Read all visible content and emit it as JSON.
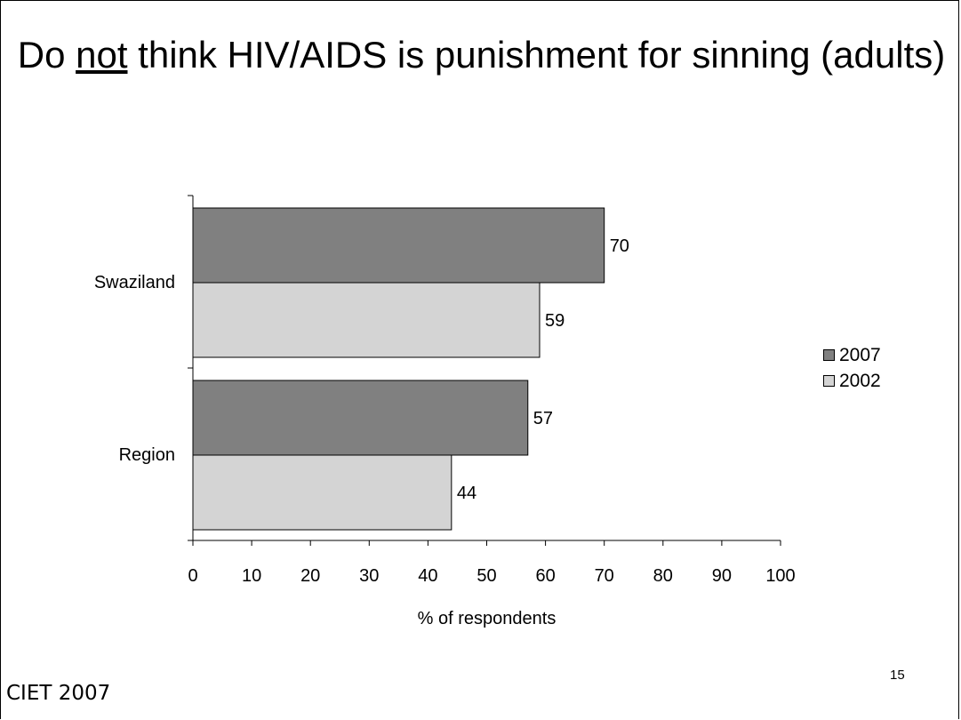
{
  "slide": {
    "title_pre": "Do ",
    "title_underlined": "not",
    "title_post": " think HIV/AIDS is punishment for sinning (adults)",
    "footer": "CIET 2007",
    "page_number": "15"
  },
  "chart_data": {
    "type": "bar",
    "orientation": "horizontal",
    "categories": [
      "Swaziland",
      "Region"
    ],
    "series": [
      {
        "name": "2007",
        "values": [
          70,
          57
        ],
        "color": "#808080"
      },
      {
        "name": "2002",
        "values": [
          59,
          44
        ],
        "color": "#d4d4d4"
      }
    ],
    "xlabel": "% of respondents",
    "ylabel": "",
    "xlim": [
      0,
      100
    ],
    "xticks": [
      0,
      10,
      20,
      30,
      40,
      50,
      60,
      70,
      80,
      90,
      100
    ],
    "data_labels": true,
    "grid": false,
    "legend_position": "right"
  }
}
